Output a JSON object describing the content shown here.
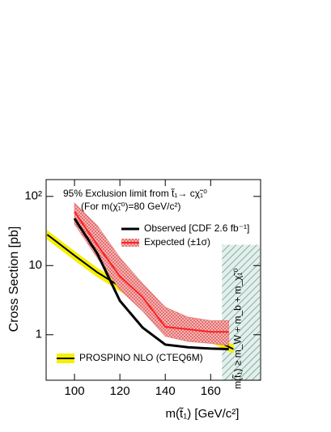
{
  "chart_data": {
    "type": "line",
    "title": "95% Exclusion limit from t̃₁→ cχ̃₁⁰",
    "subtitle": "(For m(χ̃₁⁰)=80 GeV/c²)",
    "x_label": "m(t̃₁) [GeV/c²]",
    "y_label": "Cross Section [pb]",
    "xlim": [
      87.5,
      182
    ],
    "ylim": [
      0.22,
      175
    ],
    "log_y": true,
    "xticks": [
      100,
      120,
      140,
      160
    ],
    "yticks": [
      1,
      10,
      {
        "value": 100,
        "label": "10²"
      }
    ],
    "series": [
      {
        "name": "Observed [CDF 2.6 fb⁻¹]",
        "color": "#000000",
        "x": [
          100,
          110,
          120,
          130,
          140,
          150,
          160,
          168
        ],
        "values": [
          48,
          15,
          3.1,
          1.27,
          0.72,
          0.66,
          0.63,
          0.62
        ]
      },
      {
        "name": "Expected (±1σ)",
        "color": "#ff2020",
        "band_color": "#e88080",
        "x": [
          100,
          110,
          120,
          130,
          140,
          150,
          160,
          168
        ],
        "values": [
          60,
          20,
          7,
          3.5,
          1.3,
          1.2,
          1.1,
          1.1
        ],
        "lower": [
          40,
          13,
          4.5,
          2.2,
          0.95,
          0.8,
          0.75,
          0.7
        ],
        "upper": [
          80,
          38,
          13,
          5.5,
          2.5,
          1.8,
          1.6,
          1.6
        ]
      },
      {
        "name": "PROSPINO NLO (CTEQ6M)",
        "color": "#000000",
        "band_color": "#f5f000",
        "x": [
          88,
          90,
          100,
          110,
          120,
          130,
          140,
          150,
          160,
          170
        ],
        "values": [
          28,
          25,
          14,
          8,
          5,
          3.2,
          2,
          1.3,
          0.9,
          0.62
        ],
        "lower": [
          24,
          21.5,
          12,
          6.9,
          4.3,
          2.75,
          1.72,
          1.12,
          0.78,
          0.54
        ],
        "upper": [
          32,
          28.5,
          16,
          9.2,
          5.7,
          3.65,
          2.28,
          1.48,
          1.03,
          0.71
        ]
      }
    ],
    "region": {
      "x": [
        165,
        182
      ],
      "top": 20,
      "label": "m(t̃₁) ≥ m_W + m_b + m_χ̃₁⁰"
    }
  }
}
